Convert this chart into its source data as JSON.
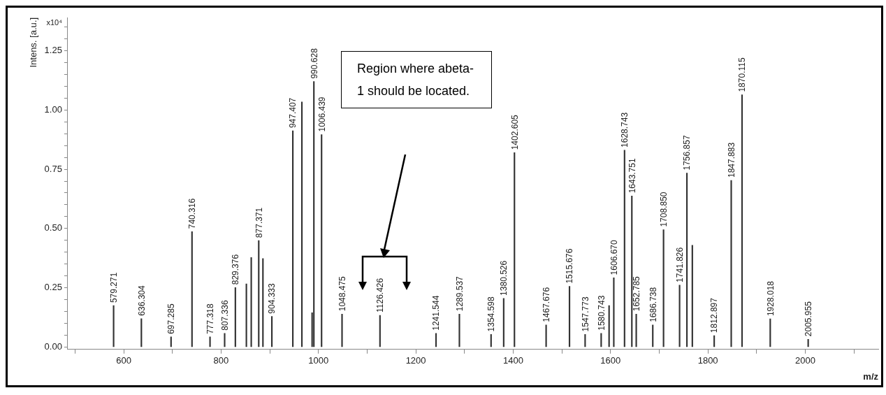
{
  "chart_data": {
    "type": "bar",
    "xlabel": "m/z",
    "ylabel": "Intens. [a.u.]",
    "annotations": [
      "x10⁴",
      "Region where abeta-1 should be located.",
      {
        "text": "579.271",
        "x": 579.271,
        "y": 0.175
      },
      {
        "text": "636.304",
        "x": 636.304,
        "y": 0.12
      },
      {
        "text": "697.285",
        "x": 697.285,
        "y": 0.043
      },
      {
        "text": "740.316",
        "x": 740.316,
        "y": 0.487
      },
      {
        "text": "777.318",
        "x": 777.318,
        "y": 0.043
      },
      {
        "text": "807.336",
        "x": 807.336,
        "y": 0.058
      },
      {
        "text": "829.376",
        "x": 829.376,
        "y": 0.251
      },
      {
        "text": "877.371",
        "x": 877.371,
        "y": 0.449
      },
      {
        "text": "904.333",
        "x": 904.333,
        "y": 0.129
      },
      {
        "text": "947.407",
        "x": 947.407,
        "y": 0.912
      },
      {
        "text": "990.628",
        "x": 990.628,
        "y": 1.12
      },
      {
        "text": "1006.439",
        "x": 1006.439,
        "y": 0.896
      },
      {
        "text": "1048.475",
        "x": 1048.475,
        "y": 0.139
      },
      {
        "text": "1126.426",
        "x": 1126.426,
        "y": 0.134
      },
      {
        "text": "1241.544",
        "x": 1241.544,
        "y": 0.058
      },
      {
        "text": "1289.537",
        "x": 1289.537,
        "y": 0.139
      },
      {
        "text": "1354.598",
        "x": 1354.598,
        "y": 0.053
      },
      {
        "text": "1380.526",
        "x": 1380.526,
        "y": 0.205
      },
      {
        "text": "1402.605",
        "x": 1402.605,
        "y": 0.82
      },
      {
        "text": "1467.676",
        "x": 1467.676,
        "y": 0.093
      },
      {
        "text": "1515.676",
        "x": 1515.676,
        "y": 0.256
      },
      {
        "text": "1547.773",
        "x": 1547.773,
        "y": 0.053
      },
      {
        "text": "1580.743",
        "x": 1580.743,
        "y": 0.058
      },
      {
        "text": "1606.670",
        "x": 1606.67,
        "y": 0.292
      },
      {
        "text": "1628.743",
        "x": 1628.743,
        "y": 0.83
      },
      {
        "text": "1643.751",
        "x": 1643.751,
        "y": 0.637
      },
      {
        "text": "1652.785",
        "x": 1652.785,
        "y": 0.139
      },
      {
        "text": "1686.738",
        "x": 1686.738,
        "y": 0.093
      },
      {
        "text": "1708.850",
        "x": 1708.85,
        "y": 0.495
      },
      {
        "text": "1741.826",
        "x": 1741.826,
        "y": 0.261
      },
      {
        "text": "1756.857",
        "x": 1756.857,
        "y": 0.734
      },
      {
        "text": "1812.897",
        "x": 1812.897,
        "y": 0.048
      },
      {
        "text": "1847.883",
        "x": 1847.883,
        "y": 0.703
      },
      {
        "text": "1870.115",
        "x": 1870.115,
        "y": 1.064
      },
      {
        "text": "1928.018",
        "x": 1928.018,
        "y": 0.119
      },
      {
        "text": "2005.955",
        "x": 2005.955,
        "y": 0.033
      }
    ],
    "x": [
      579.271,
      636.304,
      697.285,
      740.316,
      777.318,
      807.336,
      829.376,
      852,
      862,
      877.371,
      886,
      904.333,
      947.407,
      966,
      987,
      990.628,
      1006.439,
      1048.475,
      1126.426,
      1241.544,
      1289.537,
      1354.598,
      1380.526,
      1402.605,
      1467.676,
      1515.676,
      1547.773,
      1580.743,
      1597,
      1606.67,
      1628.743,
      1643.751,
      1652.785,
      1686.738,
      1708.85,
      1741.826,
      1756.857,
      1768,
      1812.897,
      1847.883,
      1870.115,
      1928.018,
      2005.955
    ],
    "values": [
      0.175,
      0.12,
      0.043,
      0.487,
      0.043,
      0.058,
      0.251,
      0.266,
      0.378,
      0.449,
      0.373,
      0.129,
      0.912,
      1.034,
      0.145,
      1.12,
      0.896,
      0.139,
      0.134,
      0.058,
      0.139,
      0.053,
      0.205,
      0.82,
      0.093,
      0.256,
      0.053,
      0.058,
      0.175,
      0.292,
      0.83,
      0.637,
      0.139,
      0.093,
      0.495,
      0.261,
      0.734,
      0.429,
      0.048,
      0.703,
      1.064,
      0.119,
      0.033
    ],
    "color": "#333333",
    "xlim": [
      485,
      2150
    ],
    "xticks": [
      {
        "value": 500,
        "label": null
      },
      600,
      {
        "value": 700,
        "label": null
      },
      800,
      {
        "value": 900,
        "label": null
      },
      1000,
      {
        "value": 1100,
        "label": null
      },
      1200,
      {
        "value": 1300,
        "label": null
      },
      1400,
      {
        "value": 1500,
        "label": null
      },
      1600,
      {
        "value": 1700,
        "label": null
      },
      1800,
      {
        "value": 1900,
        "label": null
      },
      2000,
      {
        "value": 2100,
        "label": null
      }
    ],
    "ylim": [
      -0.01,
      1.39
    ],
    "yticks": [
      {
        "value": 0,
        "label": "0.00"
      },
      {
        "value": 0.05,
        "label": null
      },
      {
        "value": 0.1,
        "label": null
      },
      {
        "value": 0.15,
        "label": null
      },
      {
        "value": 0.2,
        "label": null
      },
      {
        "value": 0.25,
        "label": "0.25"
      },
      {
        "value": 0.3,
        "label": null
      },
      {
        "value": 0.35,
        "label": null
      },
      {
        "value": 0.4,
        "label": null
      },
      {
        "value": 0.45,
        "label": null
      },
      {
        "value": 0.5,
        "label": "0.50"
      },
      {
        "value": 0.55,
        "label": null
      },
      {
        "value": 0.6,
        "label": null
      },
      {
        "value": 0.65,
        "label": null
      },
      {
        "value": 0.7,
        "label": null
      },
      {
        "value": 0.75,
        "label": "0.75"
      },
      {
        "value": 0.8,
        "label": null
      },
      {
        "value": 0.85,
        "label": null
      },
      {
        "value": 0.9,
        "label": null
      },
      {
        "value": 0.95,
        "label": null
      },
      {
        "value": 1,
        "label": "1.00"
      },
      {
        "value": 1.05,
        "label": null
      },
      {
        "value": 1.1,
        "label": null
      },
      {
        "value": 1.15,
        "label": null
      },
      {
        "value": 1.2,
        "label": null
      },
      {
        "value": 1.25,
        "label": "1.25"
      },
      {
        "value": 1.3,
        "label": null
      },
      {
        "value": 1.35,
        "label": null
      }
    ]
  }
}
